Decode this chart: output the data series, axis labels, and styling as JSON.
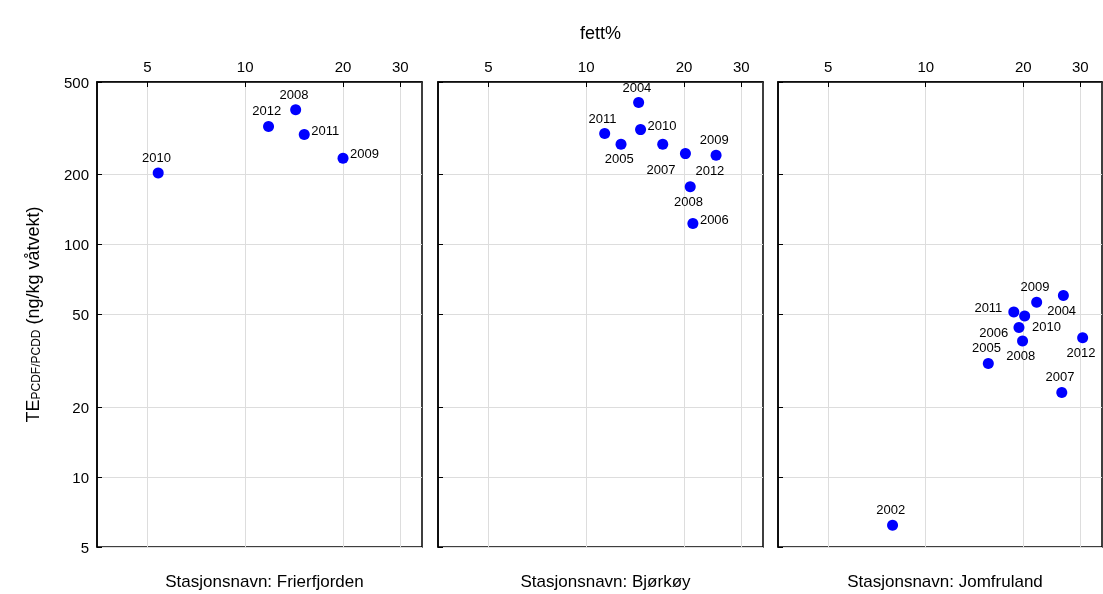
{
  "chart_data": [
    {
      "type": "scatter",
      "title": "Stasjonsnavn: Frierfjorden",
      "ylabel": "TE$_{PCDF/PCDD}$ (ng/kg våtvekt)",
      "log": "xy",
      "grid": true,
      "marker": "circle",
      "color": "#0000ff",
      "xlim": [
        3.5,
        35
      ],
      "xticks": [
        5,
        10,
        20,
        30
      ],
      "ylim": [
        5,
        500
      ],
      "yticks": [
        5,
        10,
        20,
        50,
        100,
        200,
        500
      ],
      "x": [
        5.4,
        11.8,
        14.3,
        15.2,
        20.0
      ],
      "values": [
        203,
        322,
        380,
        297,
        235
      ],
      "annotations": [
        {
          "text": "2010",
          "x": 5.4,
          "y": 203
        },
        {
          "text": "2012",
          "x": 11.8,
          "y": 322
        },
        {
          "text": "2008",
          "x": 14.3,
          "y": 380
        },
        {
          "text": "2011",
          "x": 15.2,
          "y": 297
        },
        {
          "text": "2009",
          "x": 20.0,
          "y": 235
        }
      ]
    },
    {
      "type": "scatter",
      "title": "Stasjonsnavn: Bjørkøy",
      "xlabel": "fett%",
      "log": "xy",
      "grid": true,
      "marker": "circle",
      "color": "#0000ff",
      "tick_labels": "x",
      "xlim": [
        3.5,
        35
      ],
      "xticks": [
        5,
        10,
        20,
        30
      ],
      "ylim": [
        5,
        500
      ],
      "yticks": [
        5,
        10,
        20,
        50,
        100,
        200,
        500
      ],
      "x": [
        14.5,
        14.7,
        11.4,
        12.8,
        17.2,
        20.2,
        25.1,
        20.9,
        21.3
      ],
      "values": [
        408,
        312,
        300,
        270,
        270,
        246,
        242,
        177,
        123
      ],
      "annotations": [
        {
          "text": "2004",
          "x": 14.5,
          "y": 408
        },
        {
          "text": "2010",
          "x": 14.7,
          "y": 312
        },
        {
          "text": "2011",
          "x": 11.4,
          "y": 300
        },
        {
          "text": "2005",
          "x": 12.8,
          "y": 270
        },
        {
          "text": "2007",
          "x": 17.2,
          "y": 270
        },
        {
          "text": "2012",
          "x": 20.2,
          "y": 246
        },
        {
          "text": "2009",
          "x": 25.1,
          "y": 242
        },
        {
          "text": "2008",
          "x": 20.9,
          "y": 177
        },
        {
          "text": "2006",
          "x": 21.3,
          "y": 123
        }
      ]
    },
    {
      "type": "scatter",
      "title": "Stasjonsnavn: Jomfruland",
      "log": "xy",
      "grid": true,
      "marker": "circle",
      "color": "#0000ff",
      "tick_labels": "x",
      "xlim": [
        3.5,
        35
      ],
      "xticks": [
        5,
        10,
        20,
        30
      ],
      "ylim": [
        5,
        500
      ],
      "yticks": [
        5,
        10,
        20,
        50,
        100,
        200,
        500
      ],
      "x": [
        7.9,
        15.6,
        19.4,
        18.7,
        20.2,
        19.9,
        22.0,
        26.6,
        30.5,
        26.3
      ],
      "values": [
        6.2,
        30.8,
        44,
        51.2,
        49.3,
        38.5,
        56.4,
        60.3,
        39.7,
        23.1
      ],
      "annotations": [
        {
          "text": "2002",
          "x": 7.9,
          "y": 6.2
        },
        {
          "text": "2005",
          "x": 15.6,
          "y": 30.8
        },
        {
          "text": "2010",
          "x": 19.4,
          "y": 44
        },
        {
          "text": "2011",
          "x": 18.7,
          "y": 51.2
        },
        {
          "text": "2006",
          "x": 20.2,
          "y": 49.3
        },
        {
          "text": "2008",
          "x": 19.9,
          "y": 38.5
        },
        {
          "text": "2009",
          "x": 22.0,
          "y": 56.4
        },
        {
          "text": "2004",
          "x": 26.6,
          "y": 60.3
        },
        {
          "text": "2012",
          "x": 30.5,
          "y": 39.7
        },
        {
          "text": "2007",
          "x": 26.3,
          "y": 23.1
        }
      ]
    }
  ]
}
